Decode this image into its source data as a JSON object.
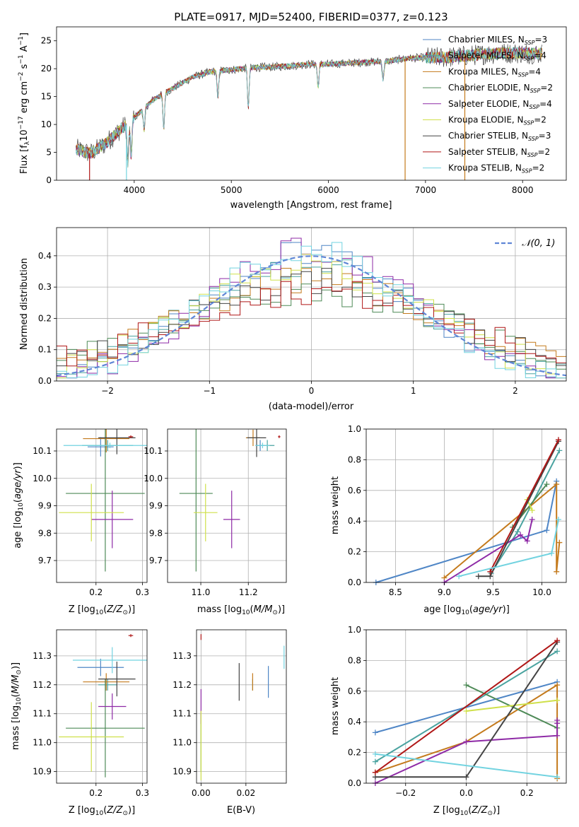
{
  "figure": {
    "title": "PLATE=0917, MJD=52400, FIBERID=0377, z=0.123"
  },
  "legend": [
    {
      "label": "Chabrier MILES, N",
      "sub": "SSP",
      "tail": "=3",
      "color": "#4f86c6"
    },
    {
      "label": "Salpeter MILES, N",
      "sub": "SSP",
      "tail": "=4",
      "color": "#4aa3a0"
    },
    {
      "label": "Kroupa MILES, N",
      "sub": "SSP",
      "tail": "=4",
      "color": "#c47a1c"
    },
    {
      "label": "Chabrier ELODIE, N",
      "sub": "SSP",
      "tail": "=2",
      "color": "#4e8a57"
    },
    {
      "label": "Salpeter ELODIE, N",
      "sub": "SSP",
      "tail": "=4",
      "color": "#8e2aa6"
    },
    {
      "label": "Kroupa ELODIE, N",
      "sub": "SSP",
      "tail": "=2",
      "color": "#cfe04a"
    },
    {
      "label": "Chabrier STELIB, N",
      "sub": "SSP",
      "tail": "=3",
      "color": "#444444"
    },
    {
      "label": "Salpeter STELIB, N",
      "sub": "SSP",
      "tail": "=2",
      "color": "#b01717"
    },
    {
      "label": "Kroupa STELIB, N",
      "sub": "SSP",
      "tail": "=2",
      "color": "#72d3e0"
    }
  ],
  "chart_data": [
    {
      "id": "spectrum",
      "type": "line",
      "xlabel": "wavelength [Angstrom, rest frame]",
      "ylabel": "Flux [f_λ 10^-17 erg cm^-2 s^-1 A^-1]",
      "xlim": [
        3200,
        8450
      ],
      "ylim": [
        0,
        27.5
      ],
      "xticks": [
        4000,
        5000,
        6000,
        7000,
        8000
      ],
      "yticks": [
        0,
        5,
        10,
        15,
        20,
        25
      ],
      "grid": false,
      "legend_placement": "top-right",
      "continuum": {
        "x": [
          3400,
          3550,
          3700,
          3850,
          3950,
          4050,
          4200,
          4400,
          4600,
          4800,
          5000,
          5200,
          5400,
          5600,
          5800,
          6000,
          6200,
          6400,
          6600,
          6800,
          7000,
          7200,
          7400,
          7600,
          7800,
          8000,
          8200
        ],
        "y": [
          5.6,
          4.8,
          6.5,
          9.0,
          10.5,
          12.0,
          14.5,
          16.5,
          18.5,
          19.5,
          19.8,
          20.2,
          20.3,
          20.5,
          20.8,
          20.8,
          21.0,
          21.2,
          21.3,
          21.8,
          22.0,
          22.0,
          22.3,
          22.6,
          22.8,
          22.8,
          22.7
        ]
      }
    },
    {
      "id": "residuals",
      "type": "histogram",
      "xlabel": "(data-model)/error",
      "ylabel": "Normed distribution",
      "xlim": [
        -2.5,
        2.5
      ],
      "ylim": [
        0,
        0.49
      ],
      "xticks": [
        -2,
        -1,
        0,
        1,
        2
      ],
      "yticks": [
        0.0,
        0.1,
        0.2,
        0.3,
        0.4
      ],
      "grid": true,
      "legend_label": "𝒩(0, 1)",
      "legend_placement": "top-right",
      "normal_color": "#5f86d6"
    },
    {
      "id": "age-vs-Z",
      "type": "scatter",
      "xlabel": "Z [log10(Z/Z⊙)]",
      "ylabel": "age  [log10(age/yr)]",
      "xlim": [
        0.115,
        0.31
      ],
      "ylim": [
        9.62,
        10.18
      ],
      "xticks": [
        0.2,
        0.3
      ],
      "yticks": [
        9.7,
        9.8,
        9.9,
        10.0,
        10.1
      ],
      "grid": true,
      "points": [
        {
          "series": 0,
          "x": 0.21,
          "y": 10.115,
          "xerr": 0.028,
          "yerr": 0.035
        },
        {
          "series": 1,
          "x": 0.225,
          "y": 10.12,
          "xerr": 0.055,
          "yerr": 0.02
        },
        {
          "series": 2,
          "x": 0.222,
          "y": 10.145,
          "xerr": 0.05,
          "yerr": 0.05
        },
        {
          "series": 3,
          "x": 0.22,
          "y": 9.945,
          "xerr": 0.085,
          "yerr": 0.285
        },
        {
          "series": 4,
          "x": 0.235,
          "y": 9.85,
          "xerr": 0.045,
          "yerr": 0.105
        },
        {
          "series": 5,
          "x": 0.19,
          "y": 9.875,
          "xerr": 0.07,
          "yerr": 0.105
        },
        {
          "series": 6,
          "x": 0.245,
          "y": 10.148,
          "xerr": 0.04,
          "yerr": 0.06
        },
        {
          "series": 7,
          "x": 0.275,
          "y": 10.152,
          "xerr": 0.005,
          "yerr": 0.005
        },
        {
          "series": 8,
          "x": 0.23,
          "y": 10.12,
          "xerr": 0.1,
          "yerr": 0.01
        }
      ]
    },
    {
      "id": "age-vs-mass",
      "type": "scatter",
      "xlabel": "mass [log10(M/M⊙)]",
      "ylabel": "",
      "xlim": [
        10.86,
        11.36
      ],
      "ylim": [
        9.62,
        10.18
      ],
      "xticks": [
        11.0,
        11.2
      ],
      "yticks": [
        9.7,
        9.8,
        9.9,
        10.0,
        10.1
      ],
      "grid": true,
      "points": [
        {
          "series": 0,
          "x": 11.25,
          "y": 10.12,
          "xerr": 0.02,
          "yerr": 0.02
        },
        {
          "series": 1,
          "x": 11.28,
          "y": 10.12,
          "xerr": 0.03,
          "yerr": 0.02
        },
        {
          "series": 2,
          "x": 11.22,
          "y": 10.148,
          "xerr": 0.03,
          "yerr": 0.03
        },
        {
          "series": 3,
          "x": 10.98,
          "y": 9.945,
          "xerr": 0.07,
          "yerr": 0.285
        },
        {
          "series": 4,
          "x": 11.13,
          "y": 9.85,
          "xerr": 0.035,
          "yerr": 0.105
        },
        {
          "series": 5,
          "x": 11.02,
          "y": 9.875,
          "xerr": 0.05,
          "yerr": 0.105
        },
        {
          "series": 6,
          "x": 11.235,
          "y": 10.148,
          "xerr": 0.04,
          "yerr": 0.07
        },
        {
          "series": 7,
          "x": 11.33,
          "y": 10.152,
          "xerr": 0.005,
          "yerr": 0.005
        },
        {
          "series": 8,
          "x": 11.26,
          "y": 10.12,
          "xerr": 0.03,
          "yerr": 0.01
        }
      ]
    },
    {
      "id": "weight-vs-age",
      "type": "line",
      "xlabel": "age  [log10(age/yr)]",
      "ylabel": "mass weight",
      "xlim": [
        8.2,
        10.25
      ],
      "ylim": [
        0,
        1.0
      ],
      "xticks": [
        8.5,
        9.0,
        9.5,
        10.0
      ],
      "yticks": [
        0.0,
        0.2,
        0.4,
        0.6,
        0.8,
        1.0
      ],
      "grid": true,
      "series": [
        {
          "series": 0,
          "x": [
            8.3,
            10.05,
            10.15
          ],
          "y": [
            0.0,
            0.34,
            0.66
          ]
        },
        {
          "series": 1,
          "x": [
            9.48,
            9.75,
            10.18
          ],
          "y": [
            0.06,
            0.33,
            0.86
          ]
        },
        {
          "series": 2,
          "x": [
            9.0,
            10.15,
            10.15,
            10.18
          ],
          "y": [
            0.03,
            0.64,
            0.07,
            0.26
          ]
        },
        {
          "series": 3,
          "x": [
            9.7,
            10.05
          ],
          "y": [
            0.36,
            0.64
          ]
        },
        {
          "series": 4,
          "x": [
            9.0,
            9.78,
            9.85,
            9.9
          ],
          "y": [
            0.0,
            0.31,
            0.27,
            0.41
          ]
        },
        {
          "series": 5,
          "x": [
            9.85,
            9.9
          ],
          "y": [
            0.54,
            0.47
          ]
        },
        {
          "series": 6,
          "x": [
            9.35,
            9.47,
            10.17
          ],
          "y": [
            0.04,
            0.04,
            0.92
          ]
        },
        {
          "series": 7,
          "x": [
            9.47,
            10.17
          ],
          "y": [
            0.07,
            0.93
          ]
        },
        {
          "series": 8,
          "x": [
            9.15,
            10.1,
            10.17
          ],
          "y": [
            0.04,
            0.19,
            0.41
          ]
        }
      ]
    },
    {
      "id": "mass-vs-Z",
      "type": "scatter",
      "xlabel": "Z [log10(Z/Z⊙)]",
      "ylabel": "mass [log10(M/M⊙)]",
      "xlim": [
        0.115,
        0.31
      ],
      "ylim": [
        10.86,
        11.39
      ],
      "xticks": [
        0.2,
        0.3
      ],
      "yticks": [
        10.9,
        11.0,
        11.1,
        11.2,
        11.3
      ],
      "grid": true,
      "points": [
        {
          "series": 0,
          "x": 0.21,
          "y": 11.26,
          "xerr": 0.05,
          "yerr": 0.03
        },
        {
          "series": 1,
          "x": 0.225,
          "y": 11.2,
          "xerr": 0.02,
          "yerr": 0.02
        },
        {
          "series": 2,
          "x": 0.222,
          "y": 11.21,
          "xerr": 0.05,
          "yerr": 0.03
        },
        {
          "series": 3,
          "x": 0.22,
          "y": 11.05,
          "xerr": 0.085,
          "yerr": 0.17
        },
        {
          "series": 4,
          "x": 0.235,
          "y": 11.125,
          "xerr": 0.03,
          "yerr": 0.045
        },
        {
          "series": 5,
          "x": 0.19,
          "y": 11.02,
          "xerr": 0.07,
          "yerr": 0.12
        },
        {
          "series": 6,
          "x": 0.245,
          "y": 11.22,
          "xerr": 0.04,
          "yerr": 0.06
        },
        {
          "series": 7,
          "x": 0.275,
          "y": 11.37,
          "xerr": 0.005,
          "yerr": 0.005
        },
        {
          "series": 8,
          "x": 0.235,
          "y": 11.285,
          "xerr": 0.085,
          "yerr": 0.045
        }
      ]
    },
    {
      "id": "mass-vs-ebv",
      "type": "scatter",
      "xlabel": "E(B-V)",
      "ylabel": "",
      "xlim": [
        -0.002,
        0.038
      ],
      "ylim": [
        10.86,
        11.39
      ],
      "xticks": [
        0.0,
        0.02
      ],
      "yticks": [
        10.9,
        11.0,
        11.1,
        11.2,
        11.3
      ],
      "grid": true,
      "points": [
        {
          "series": 0,
          "x": 0.03,
          "y": 11.21,
          "xerr": 0,
          "yerr": 0.055
        },
        {
          "series": 1,
          "x": 0.023,
          "y": 11.2,
          "xerr": 0,
          "yerr": 0.02
        },
        {
          "series": 2,
          "x": 0.023,
          "y": 11.21,
          "xerr": 0,
          "yerr": 0.03
        },
        {
          "series": 3,
          "x": 0.0,
          "y": 11.0,
          "xerr": 0,
          "yerr": 0.1
        },
        {
          "series": 4,
          "x": 0.0,
          "y": 11.125,
          "xerr": 0,
          "yerr": 0.06
        },
        {
          "series": 5,
          "x": 0.0,
          "y": 10.99,
          "xerr": 0,
          "yerr": 0.12
        },
        {
          "series": 6,
          "x": 0.017,
          "y": 11.21,
          "xerr": 0,
          "yerr": 0.065
        },
        {
          "series": 7,
          "x": 0.0,
          "y": 11.365,
          "xerr": 0,
          "yerr": 0.01
        },
        {
          "series": 8,
          "x": 0.037,
          "y": 11.295,
          "xerr": 0,
          "yerr": 0.04
        }
      ]
    },
    {
      "id": "weight-vs-Z",
      "type": "line",
      "xlabel": "Z [log10(Z/Z⊙)]",
      "ylabel": "mass weight",
      "xlim": [
        -0.33,
        0.33
      ],
      "ylim": [
        0,
        1.0
      ],
      "xticks": [
        -0.2,
        0.0,
        0.2
      ],
      "yticks": [
        0.0,
        0.2,
        0.4,
        0.6,
        0.8,
        1.0
      ],
      "grid": true,
      "series": [
        {
          "series": 0,
          "x": [
            -0.3,
            0.3
          ],
          "y": [
            0.33,
            0.66
          ]
        },
        {
          "series": 1,
          "x": [
            -0.3,
            0.3
          ],
          "y": [
            0.14,
            0.86
          ]
        },
        {
          "series": 2,
          "x": [
            -0.3,
            0.0,
            0.3,
            0.3
          ],
          "y": [
            0.07,
            0.27,
            0.64,
            0.03
          ]
        },
        {
          "series": 3,
          "x": [
            0.0,
            0.3
          ],
          "y": [
            0.64,
            0.36
          ]
        },
        {
          "series": 4,
          "x": [
            -0.3,
            0.0,
            0.3,
            0.3,
            0.3
          ],
          "y": [
            0.0,
            0.27,
            0.31,
            0.41,
            0.39
          ]
        },
        {
          "series": 5,
          "x": [
            0.0,
            0.3
          ],
          "y": [
            0.47,
            0.54
          ]
        },
        {
          "series": 6,
          "x": [
            -0.3,
            0.0,
            0.3
          ],
          "y": [
            0.04,
            0.04,
            0.92
          ]
        },
        {
          "series": 7,
          "x": [
            -0.3,
            0.3
          ],
          "y": [
            0.07,
            0.93
          ]
        },
        {
          "series": 8,
          "x": [
            -0.3,
            0.3
          ],
          "y": [
            0.19,
            0.04
          ]
        }
      ]
    }
  ]
}
